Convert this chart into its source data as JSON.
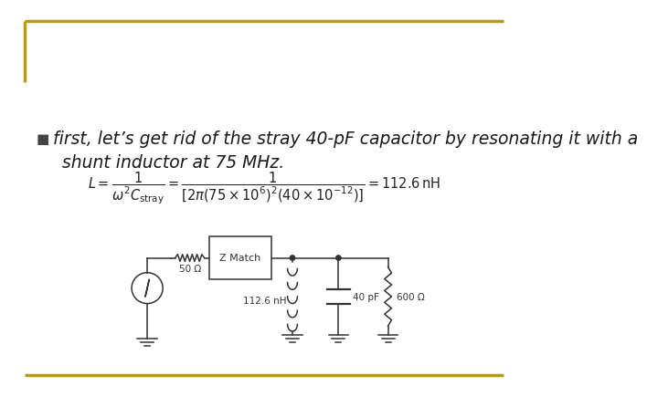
{
  "bg_color": "#ffffff",
  "border_color": "#b8972a",
  "border_width": 2.5,
  "bullet_char": "■",
  "text_line1": "first, let’s get rid of the stray 40-pF capacitor by resonating it with a",
  "text_line2": "shunt inductor at 75 MHz.",
  "text_color": "#1a1a1a",
  "text_fontsize": 13.5,
  "gold_color": "#b8972a",
  "circ_color": "#333333"
}
